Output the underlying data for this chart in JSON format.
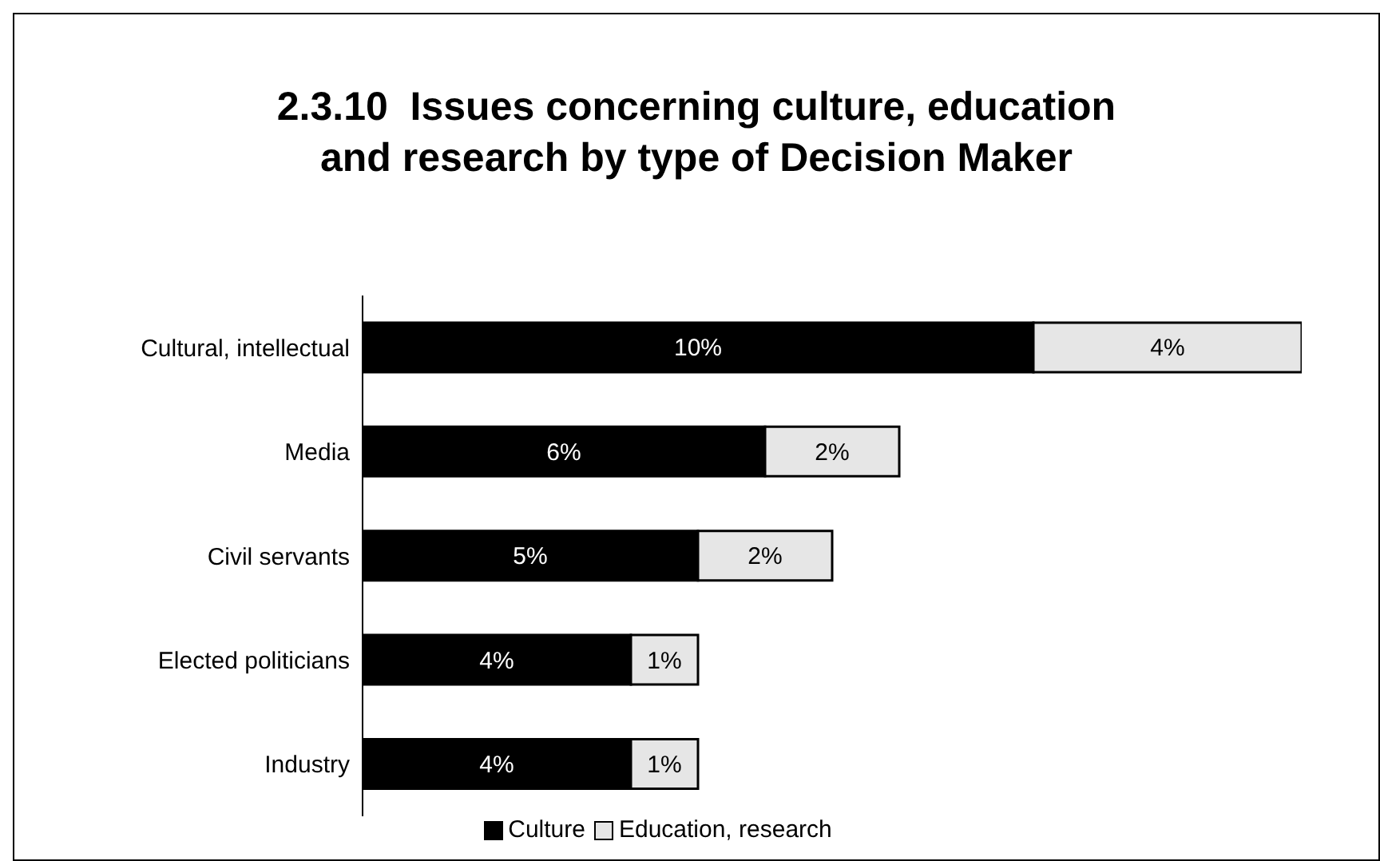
{
  "chart_data": {
    "type": "bar",
    "orientation": "horizontal",
    "stacked": true,
    "title": "2.3.10  Issues concerning culture, education and research by type of Decision Maker",
    "categories": [
      "Cultural, intellectual",
      "Media",
      "Civil servants",
      "Elected politicians",
      "Industry"
    ],
    "series": [
      {
        "name": "Culture",
        "color": "#000000",
        "values": [
          10,
          6,
          5,
          4,
          4
        ],
        "value_labels": [
          "10%",
          "6%",
          "5%",
          "4%",
          "4%"
        ]
      },
      {
        "name": "Education, research",
        "color": "#e6e6e6",
        "values": [
          4,
          2,
          2,
          1,
          1
        ],
        "value_labels": [
          "4%",
          "2%",
          "2%",
          "1%",
          "1%"
        ]
      }
    ],
    "legend": "bottom"
  }
}
